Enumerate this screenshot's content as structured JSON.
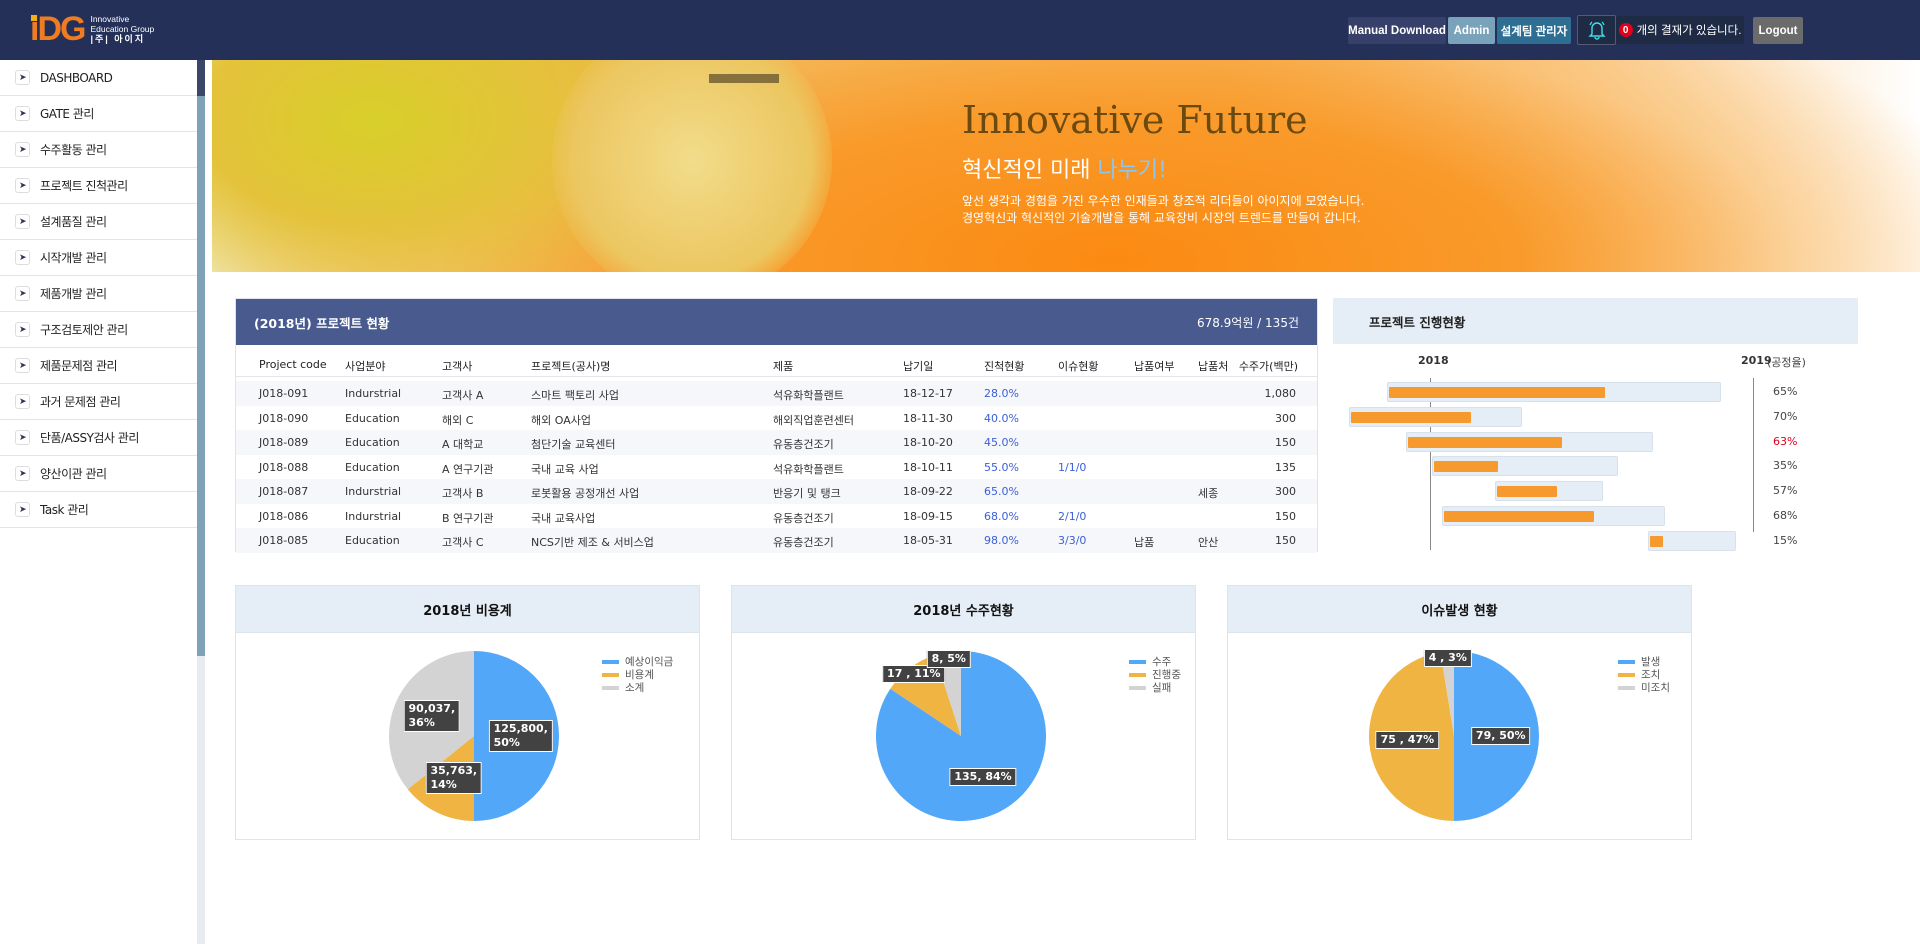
{
  "header": {
    "logo_mark": "iDG",
    "logo_line1": "Innovative",
    "logo_line2": "Education Group",
    "logo_line3": "|주| 아이지",
    "manual_download": "Manual Download",
    "admin": "Admin",
    "role": "설계팀 관리자",
    "approval_count": "0",
    "approval_text": "개의 결재가 있습니다.",
    "logout": "Logout",
    "colors": {
      "bg": "#243058",
      "manual": "#37406a",
      "admin": "#7aa3bb",
      "role": "#2e6e93",
      "logout": "#6b6b6b",
      "badge": "#e0001b"
    }
  },
  "sidebar": {
    "items": [
      {
        "label": "DASHBOARD"
      },
      {
        "label": "GATE 관리"
      },
      {
        "label": "수주활동 관리"
      },
      {
        "label": "프로젝트 진척관리"
      },
      {
        "label": "설계품질 관리"
      },
      {
        "label": "시작개발 관리"
      },
      {
        "label": "제품개발 관리"
      },
      {
        "label": "구조검토제안 관리"
      },
      {
        "label": "제품문제점 관리"
      },
      {
        "label": "과거 문제점 관리"
      },
      {
        "label": "단품/ASSY검사 관리"
      },
      {
        "label": "양산이관 관리"
      },
      {
        "label": "Task 관리"
      }
    ]
  },
  "banner": {
    "title": "Innovative Future",
    "sub_a": "혁신적인 미래 ",
    "sub_b": "나누기!",
    "line1": "앞선 생각과 경험을 가진 우수한 인재들과 창조적 리더들이 아이지에 모였습니다.",
    "line2": "경영혁신과 혁신적인 기술개발을 통해 교육장비 시장의 트렌드를 만들어 갑니다."
  },
  "projects": {
    "title": "(2018년) 프로젝트 현황",
    "summary": "678.9억원 / 135건",
    "columns": [
      "Project code",
      "사업분야",
      "고객사",
      "프로젝트(공사)명",
      "제품",
      "납기일",
      "진척현황",
      "이슈현황",
      "납품여부",
      "납품처",
      "수주가(백만)"
    ],
    "rows": [
      [
        "J018-091",
        "Indurstrial",
        "고객사 A",
        "스마트 팩토리 사업",
        "석유화학플랜트",
        "18-12-17",
        "28.0%",
        "",
        "",
        "",
        "1,080"
      ],
      [
        "J018-090",
        "Education",
        "해외 C",
        "해외 OA사업",
        "해외직업훈련센터",
        "18-11-30",
        "40.0%",
        "",
        "",
        "",
        "300"
      ],
      [
        "J018-089",
        "Education",
        "A 대학교",
        "첨단기술 교육센터",
        "유동층건조기",
        "18-10-20",
        "45.0%",
        "",
        "",
        "",
        "150"
      ],
      [
        "J018-088",
        "Education",
        "A 연구기관",
        "국내 교육 사업",
        "석유화학플랜트",
        "18-10-11",
        "55.0%",
        "1/1/0",
        "",
        "",
        "135"
      ],
      [
        "J018-087",
        "Indurstrial",
        "고객사 B",
        "로봇활용 공정개선 사업",
        "반응기 및 탱크",
        "18-09-22",
        "65.0%",
        "",
        "",
        "세종",
        "300"
      ],
      [
        "J018-086",
        "Indurstrial",
        "B 연구기관",
        "국내 교육사업",
        "유동층건조기",
        "18-09-15",
        "68.0%",
        "2/1/0",
        "",
        "",
        "150"
      ],
      [
        "J018-085",
        "Education",
        "고객사 C",
        "NCS기반 제조 & 서비스업",
        "유동층건조기",
        "18-05-31",
        "98.0%",
        "3/3/0",
        "납품",
        "안산",
        "150"
      ]
    ]
  },
  "gantt": {
    "title": "프로젝트 진행현황",
    "axis": [
      "2018",
      "2019"
    ],
    "rate_label": "(공정율)",
    "rows": [
      {
        "start": "2017-11-13",
        "end": "2018-11-26",
        "progress": 65,
        "label": "65%"
      },
      {
        "start": "2017-10-01",
        "end": "2018-04-15",
        "progress": 70,
        "label": "70%"
      },
      {
        "start": "2017-12-05",
        "end": "2018-09-10",
        "progress": 63,
        "label": "63%",
        "warn": true
      },
      {
        "start": "2018-01-03",
        "end": "2018-08-02",
        "progress": 35,
        "label": "35%"
      },
      {
        "start": "2018-03-15",
        "end": "2018-07-16",
        "progress": 57,
        "label": "57%"
      },
      {
        "start": "2018-01-14",
        "end": "2018-09-24",
        "progress": 68,
        "label": "68%"
      },
      {
        "start": "2018-09-04",
        "end": "2018-12-13",
        "progress": 15,
        "label": "15%"
      }
    ],
    "colors": {
      "bar": "#f79a2e",
      "track": "#e5edf6",
      "warn": "#e0001b"
    }
  },
  "chart_data": [
    {
      "type": "pie",
      "title": "2018년 비용계",
      "labels": [
        "예상이익금",
        "비용계",
        "소계"
      ],
      "values": [
        125800,
        35763,
        90037
      ],
      "data_labels": [
        "125,800, 50%",
        "35,763, 14%",
        "90,037, 36%"
      ],
      "colors": [
        "#52a7f8",
        "#f0b442",
        "#d3d3d3"
      ],
      "legend": "top-right"
    },
    {
      "type": "pie",
      "title": "2018년 수주현황",
      "labels": [
        "수주",
        "진행중",
        "실패"
      ],
      "values": [
        135,
        17,
        8
      ],
      "data_labels": [
        "135, 84%",
        "17 , 11%",
        "8, 5%"
      ],
      "colors": [
        "#52a7f8",
        "#f0b442",
        "#d3d3d3"
      ],
      "legend": "top-right"
    },
    {
      "type": "pie",
      "title": "이슈발생 현황",
      "labels": [
        "발생",
        "조치",
        "미조치"
      ],
      "values": [
        79,
        75,
        4
      ],
      "data_labels": [
        "79, 50%",
        "75 , 47%",
        "4 , 3%"
      ],
      "colors": [
        "#52a7f8",
        "#f0b442",
        "#d3d3d3"
      ],
      "legend": "top-right"
    }
  ]
}
